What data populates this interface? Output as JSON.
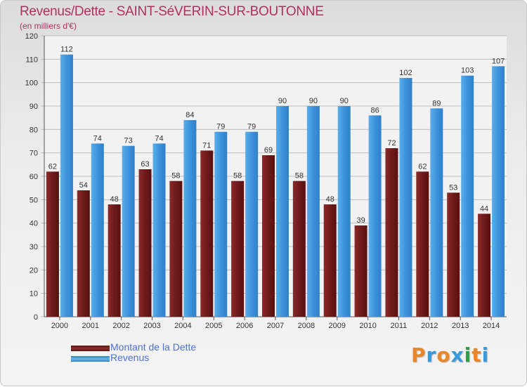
{
  "header": {
    "title": "Revenus/Dette - SAINT-SéVERIN-SUR-BOUTONNE",
    "subtitle": "(en milliers d'€)"
  },
  "legend": {
    "debt_label": "Montant de la Dette",
    "revenue_label": "Revenus"
  },
  "logo": {
    "text": "Proxiti",
    "colors": [
      "#e8872a",
      "#3a9ad9",
      "#e8872a",
      "#3a9ad9",
      "#2d9f4a",
      "#e8872a",
      "#3a9ad9"
    ]
  },
  "colors": {
    "debt": "#7a1f1f",
    "revenue": "#3d93dc",
    "title": "#b03060",
    "legend_text": "#4f6fd8"
  },
  "chart_data": {
    "type": "bar",
    "title": "Revenus/Dette - SAINT-SéVERIN-SUR-BOUTONNE",
    "subtitle": "(en milliers d'€)",
    "xlabel": "",
    "ylabel": "",
    "ylim": [
      0,
      120
    ],
    "yticks": [
      0,
      10,
      20,
      30,
      40,
      50,
      60,
      70,
      80,
      90,
      100,
      110,
      120
    ],
    "grid": true,
    "legend_position": "bottom-left",
    "categories": [
      "2000",
      "2001",
      "2002",
      "2003",
      "2004",
      "2005",
      "2006",
      "2007",
      "2008",
      "2009",
      "2010",
      "2011",
      "2012",
      "2013",
      "2014"
    ],
    "series": [
      {
        "name": "Montant de la Dette",
        "values": [
          62,
          54,
          48,
          63,
          58,
          71,
          58,
          69,
          58,
          48,
          39,
          72,
          62,
          53,
          44
        ]
      },
      {
        "name": "Revenus",
        "values": [
          112,
          74,
          73,
          74,
          84,
          79,
          79,
          90,
          90,
          90,
          86,
          102,
          89,
          103,
          107
        ]
      }
    ]
  }
}
